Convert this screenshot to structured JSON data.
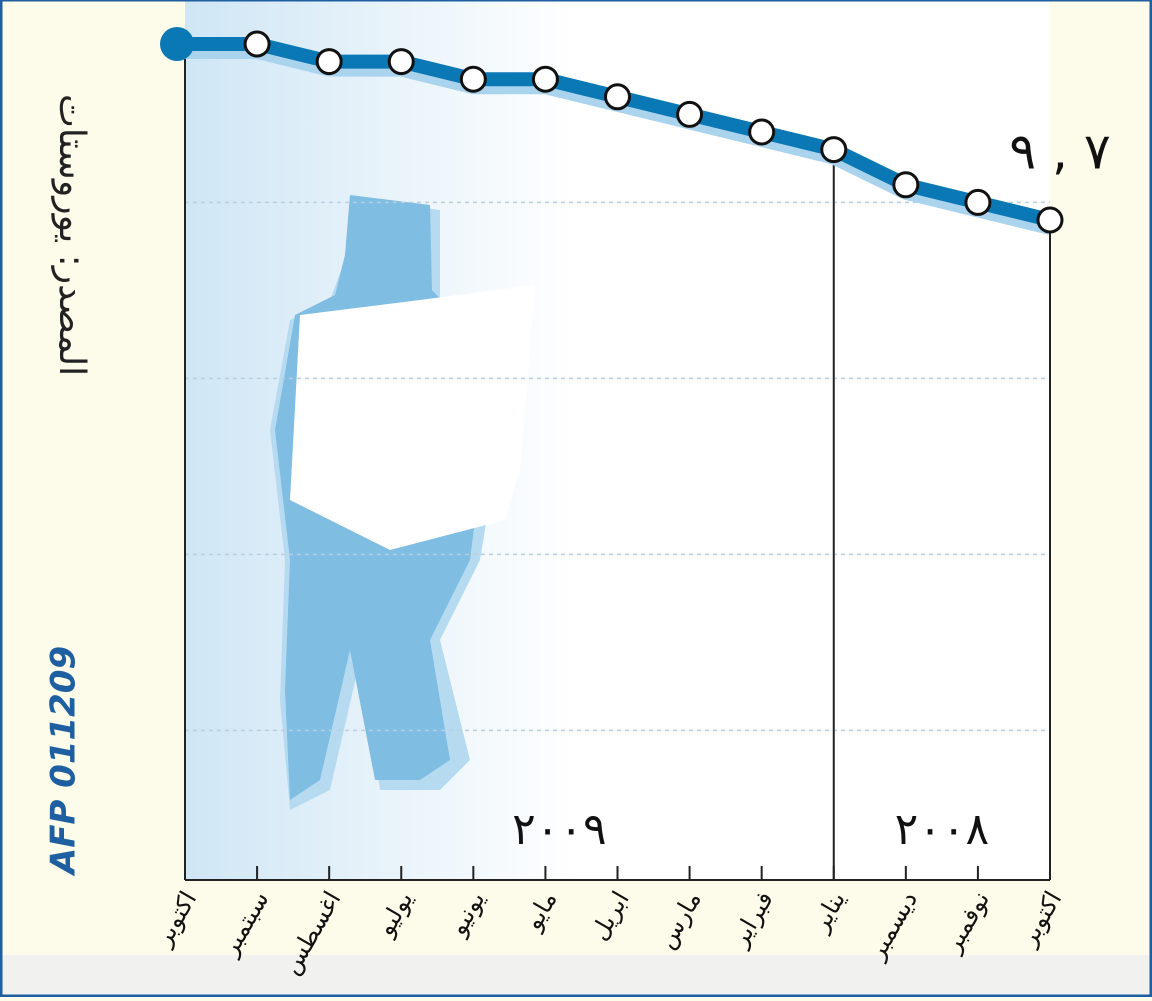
{
  "chart_data": {
    "type": "line",
    "source": "المصدر: يوروستات",
    "credit": "AFP 011209",
    "categories": [
      "اكتوبر",
      "سبتمبر",
      "اغسطس",
      "يوليو",
      "يونيو",
      "مايو",
      "ابريل",
      "مارس",
      "فبراير",
      "يناير",
      "ديسمبر",
      "نوفمبر",
      "اكتوبر"
    ],
    "series": [
      {
        "color": "#0a78b4",
        "values": [
          8.9,
          8.9,
          8.8,
          8.8,
          8.7,
          8.7,
          8.6,
          8.5,
          8.4,
          8.3,
          8.1,
          8.0,
          7.9
        ],
        "value_labels": [
          null,
          null,
          null,
          null,
          null,
          null,
          null,
          null,
          null,
          null,
          null,
          null,
          "٧ , ٩"
        ]
      }
    ],
    "year_labels": [
      "٢٠٠٩",
      "٢٠٠٨"
    ],
    "ylim": [
      4.15,
      9.15
    ],
    "gridlines": [
      5,
      6,
      7,
      8
    ],
    "grid": true
  }
}
